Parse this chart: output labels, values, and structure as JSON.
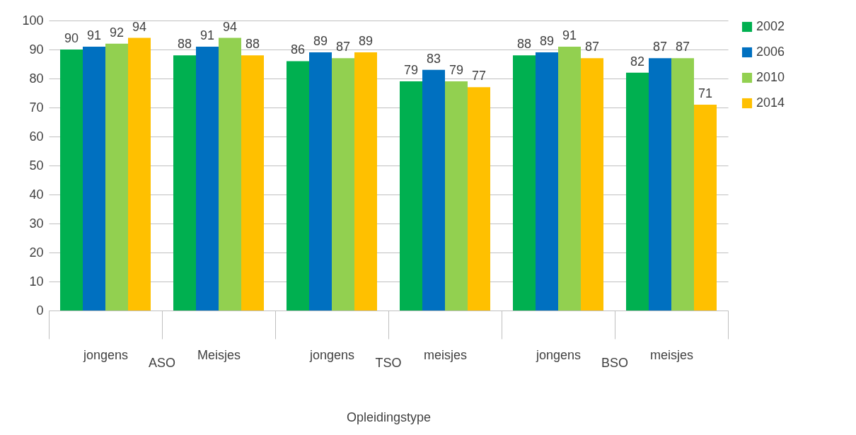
{
  "chart_data": {
    "type": "bar",
    "xlabel": "Opleidingstype",
    "categories": [
      "jongens",
      "Meisjes",
      "jongens",
      "meisjes",
      "jongens",
      "meisjes"
    ],
    "series": [
      {
        "name": "2002",
        "color": "#00b050",
        "values": [
          90,
          88,
          86,
          79,
          88,
          82
        ]
      },
      {
        "name": "2006",
        "color": "#0070c0",
        "values": [
          91,
          91,
          89,
          83,
          89,
          87
        ]
      },
      {
        "name": "2010",
        "color": "#92d050",
        "values": [
          92,
          94,
          87,
          79,
          91,
          87
        ]
      },
      {
        "name": "2014",
        "color": "#ffc000",
        "values": [
          94,
          88,
          89,
          77,
          87,
          71
        ]
      }
    ],
    "annotations": [
      "ASO",
      "TSO",
      "BSO"
    ],
    "ylim": [
      0,
      100
    ],
    "yticks": [
      0,
      10,
      20,
      30,
      40,
      50,
      60,
      70,
      80,
      90,
      100
    ],
    "grid": "y",
    "legend": "right",
    "data_labels": true
  }
}
